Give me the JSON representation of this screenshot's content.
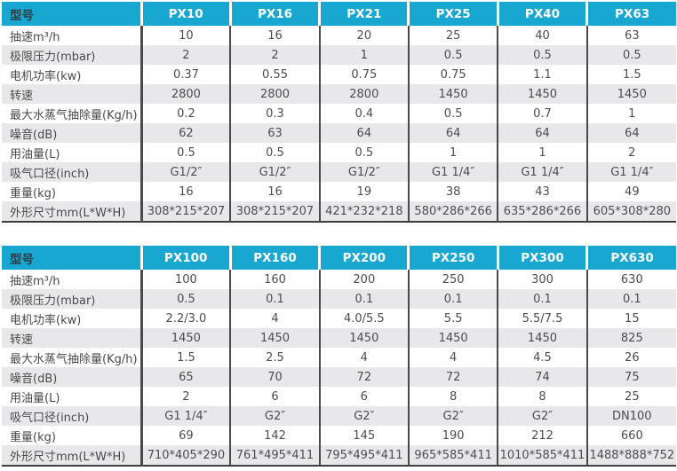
{
  "colors": {
    "accent_teal": "#18a7d0",
    "row_alt_gray": "#e8e8ea",
    "divider_dark": "#4a4a4a",
    "header_label_text": "#2d3e46",
    "body_text": "#4d4d4d"
  },
  "tables": [
    {
      "header_label": "型号",
      "models": [
        "PX10",
        "PX16",
        "PX21",
        "PX25",
        "PX40",
        "PX63"
      ],
      "rows": [
        {
          "label": "抽速m³/h",
          "values": [
            "10",
            "16",
            "20",
            "25",
            "40",
            "63"
          ]
        },
        {
          "label": "极限压力(mbar)",
          "values": [
            "2",
            "2",
            "1",
            "0.5",
            "0.5",
            "0.5"
          ]
        },
        {
          "label": "电机功率(kw)",
          "values": [
            "0.37",
            "0.55",
            "0.75",
            "0.75",
            "1.1",
            "1.5"
          ]
        },
        {
          "label": "转速",
          "values": [
            "2800",
            "2800",
            "2800",
            "1450",
            "1450",
            "1450"
          ]
        },
        {
          "label": "最大水蒸气抽除量(Kg/h)",
          "values": [
            "0.2",
            "0.3",
            "0.4",
            "0.5",
            "0.7",
            "1"
          ]
        },
        {
          "label": "噪音(dB)",
          "values": [
            "62",
            "63",
            "64",
            "64",
            "64",
            "64"
          ]
        },
        {
          "label": "用油量(L)",
          "values": [
            "0.5",
            "0.5",
            "0.5",
            "1",
            "1",
            "2"
          ]
        },
        {
          "label": "吸气口径(inch)",
          "values": [
            "G1/2″",
            "G1/2″",
            "G1/2″",
            "G1 1/4″",
            "G1 1/4″",
            "G1 1/4″"
          ]
        },
        {
          "label": "重量(kg)",
          "values": [
            "16",
            "16",
            "19",
            "38",
            "43",
            "49"
          ]
        },
        {
          "label": "外形尺寸mm(L*W*H)",
          "values": [
            "308*215*207",
            "308*215*207",
            "421*232*218",
            "580*286*266",
            "635*286*266",
            "605*308*280"
          ]
        }
      ]
    },
    {
      "header_label": "型号",
      "models": [
        "PX100",
        "PX160",
        "PX200",
        "PX250",
        "PX300",
        "PX630"
      ],
      "rows": [
        {
          "label": "抽速m³/h",
          "values": [
            "100",
            "160",
            "200",
            "250",
            "300",
            "630"
          ]
        },
        {
          "label": "极限压力(mbar)",
          "values": [
            "0.5",
            "0.1",
            "0.1",
            "0.1",
            "0.1",
            "0.1"
          ]
        },
        {
          "label": "电机功率(kw)",
          "values": [
            "2.2/3.0",
            "4",
            "4.0/5.5",
            "5.5",
            "5.5/7.5",
            "15"
          ]
        },
        {
          "label": "转速",
          "values": [
            "1450",
            "1450",
            "1450",
            "1450",
            "1450",
            "825"
          ]
        },
        {
          "label": "最大水蒸气抽除量(Kg/h)",
          "values": [
            "1.5",
            "2.5",
            "4",
            "4",
            "4.5",
            "26"
          ]
        },
        {
          "label": "噪音(dB)",
          "values": [
            "65",
            "70",
            "72",
            "72",
            "74",
            "75"
          ]
        },
        {
          "label": "用油量(L)",
          "values": [
            "2",
            "6",
            "6",
            "8",
            "8",
            "25"
          ]
        },
        {
          "label": "吸气口径(inch)",
          "values": [
            "G1 1/4″",
            "G2″",
            "G2″",
            "G2″",
            "G2″",
            "DN100"
          ]
        },
        {
          "label": "重量(kg)",
          "values": [
            "69",
            "142",
            "145",
            "190",
            "212",
            "660"
          ]
        },
        {
          "label": "外形尺寸mm(L*W*H)",
          "values": [
            "710*405*290",
            "761*495*411",
            "795*495*411",
            "965*585*411",
            "1010*585*411",
            "1488*888*752"
          ]
        }
      ]
    }
  ]
}
